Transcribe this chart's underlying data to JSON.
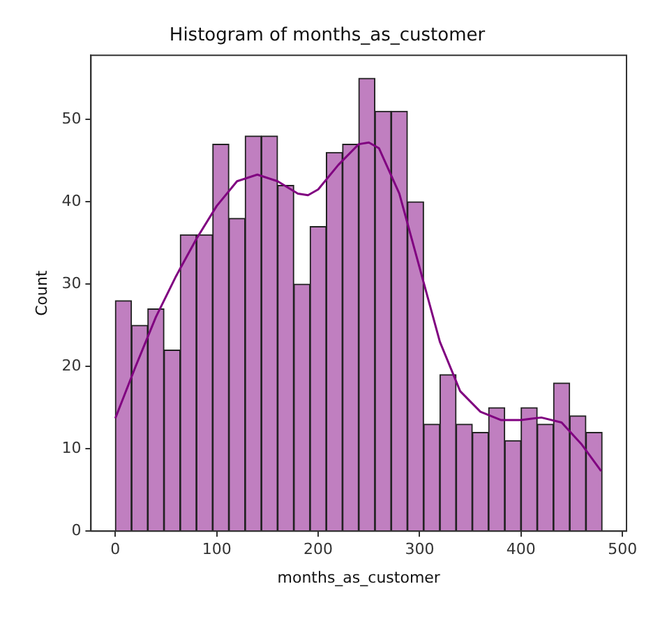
{
  "chart_data": {
    "type": "histogram",
    "title": "Histogram of months_as_customer",
    "xlabel": "months_as_customer",
    "ylabel": "Count",
    "bins": [
      0,
      16,
      32,
      48,
      64,
      80,
      96,
      112,
      128,
      144,
      160,
      176,
      192,
      208,
      224,
      240,
      256,
      272,
      288,
      304,
      320,
      336,
      352,
      368,
      384,
      400,
      416,
      432,
      448,
      464,
      480
    ],
    "values": [
      28,
      25,
      27,
      22,
      36,
      36,
      47,
      38,
      48,
      48,
      42,
      30,
      37,
      46,
      47,
      55,
      51,
      51,
      40,
      13,
      19,
      13,
      12,
      15,
      11,
      15,
      13,
      18,
      14,
      12
    ],
    "color": "#c07fc0",
    "series": [
      {
        "type": "line",
        "color": "#800080",
        "x": [
          0,
          20,
          40,
          60,
          80,
          100,
          120,
          140,
          160,
          180,
          190,
          200,
          220,
          240,
          250,
          260,
          280,
          300,
          320,
          340,
          360,
          380,
          400,
          420,
          440,
          460,
          479
        ],
        "values": [
          13.7,
          20,
          26,
          31,
          35.5,
          39.5,
          42.5,
          43.3,
          42.5,
          41,
          40.8,
          41.5,
          44.5,
          47,
          47.2,
          46.5,
          41,
          32,
          23,
          17,
          14.5,
          13.5,
          13.5,
          13.8,
          13.2,
          10.5,
          7.3
        ]
      }
    ],
    "xlim": [
      -24,
      504
    ],
    "ylim": [
      0,
      57.8
    ],
    "xticks": [
      0,
      100,
      200,
      300,
      400,
      500
    ],
    "yticks": [
      0,
      10,
      20,
      30,
      40,
      50
    ],
    "grid": false,
    "legend": false
  }
}
